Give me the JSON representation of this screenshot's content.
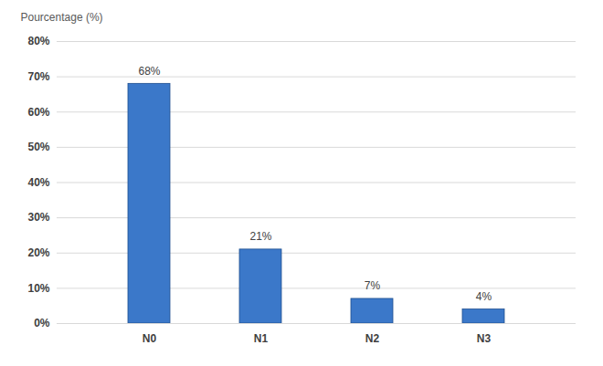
{
  "chart_data": {
    "type": "bar",
    "y_label": "Pourcentage (%)",
    "categories": [
      "N0",
      "N1",
      "N2",
      "N3"
    ],
    "values": [
      68,
      21,
      7,
      4
    ],
    "value_labels": [
      "68%",
      "21%",
      "7%",
      "4%"
    ],
    "color": "#3b78c9",
    "ylim": [
      0,
      80
    ],
    "yticks": [
      {
        "value": 0,
        "label": "0%"
      },
      {
        "value": 10,
        "label": "10%"
      },
      {
        "value": 20,
        "label": "20%"
      },
      {
        "value": 30,
        "label": "30%"
      },
      {
        "value": 40,
        "label": "40%"
      },
      {
        "value": 50,
        "label": "50%"
      },
      {
        "value": 60,
        "label": "60%"
      },
      {
        "value": 70,
        "label": "70%"
      },
      {
        "value": 80,
        "label": "80%"
      }
    ],
    "grid": true,
    "data_labels": true
  }
}
